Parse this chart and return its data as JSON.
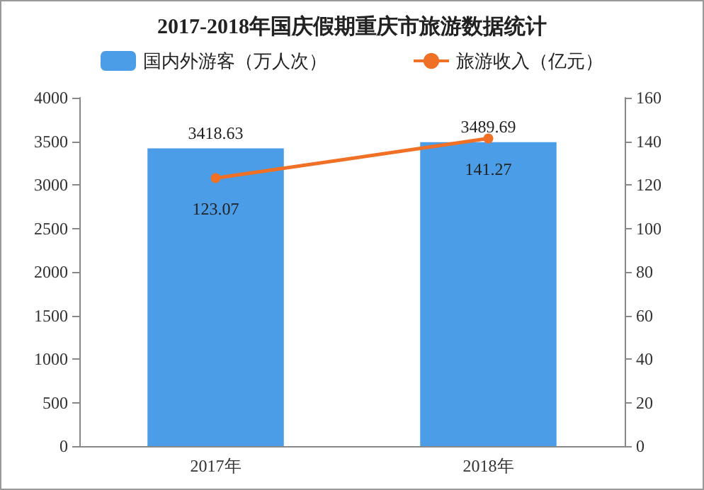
{
  "chart_data": {
    "type": "bar",
    "title": "2017-2018年国庆假期重庆市旅游数据统计",
    "categories": [
      "2017年",
      "2018年"
    ],
    "series": [
      {
        "name": "国内外游客（万人次）",
        "color": "#4a9de6",
        "values": [
          3418.63,
          3489.69
        ]
      },
      {
        "name": "旅游收入（亿元）",
        "type": "line",
        "axis": "y2",
        "color": "#f07026",
        "values": [
          123.07,
          141.27
        ]
      }
    ],
    "ylim": [
      0,
      4000
    ],
    "yticks": [
      0,
      500,
      1000,
      1500,
      2000,
      2500,
      3000,
      3500,
      4000
    ],
    "y2lim": [
      0,
      160
    ],
    "y2ticks": [
      0,
      20,
      40,
      60,
      80,
      100,
      120,
      140,
      160
    ],
    "data_labels": true,
    "legend": "top",
    "marker": "circle",
    "grid": false
  }
}
